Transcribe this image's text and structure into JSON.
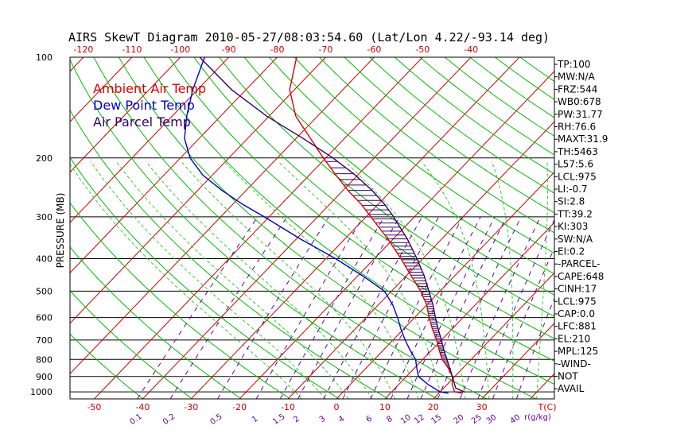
{
  "title": "AIRS SkewT Diagram 2010-05-27/08:03:54.60 (Lat/Lon 4.22/-93.14 deg)",
  "colors": {
    "ambient": "#dd0000",
    "dewpoint": "#0000cc",
    "parcel": "#330066",
    "isotherm": "#cc0000",
    "dry_adiabat": "#00bb00",
    "moist_adiabat": "#33cc33",
    "mixing_ratio": "#660099",
    "isobar": "#000000"
  },
  "legend": [
    {
      "label": "Ambient Air Temp",
      "color": "#dd0000"
    },
    {
      "label": "Dew Point Temp",
      "color": "#0000cc"
    },
    {
      "label": "Air Parcel Temp",
      "color": "#330066"
    }
  ],
  "indices": [
    "TP:100",
    "MW:N/A",
    "FRZ:544",
    "WB0:678",
    "PW:31.77",
    "RH:76.6",
    "MAXT:31.9",
    "TH:5463",
    "L57:5.6",
    "LCL:975",
    "LI:-0.7",
    "SI:2.8",
    "TT:39.2",
    "KI:303",
    "SW:N/A",
    "EI:0.2",
    "-PARCEL-",
    "CAPE:648",
    "CINH:17",
    "LCL:975",
    "CAP:0.0",
    "LFC:881",
    "EL:210",
    "MPL:125",
    "-WIND-",
    "NOT",
    "AVAIL"
  ],
  "chart_data": {
    "type": "line",
    "title": "AIRS SkewT Diagram 2010-05-27/08:03:54.60 (Lat/Lon 4.22/-93.14 deg)",
    "ylabel": "PRESSURE (MB)",
    "xlabel": "T(C)",
    "mixing_ratio_unit": "r(g/kg)",
    "y_scale": "log",
    "ylim": [
      1050,
      100
    ],
    "xlim": [
      -55,
      45
    ],
    "pressure_ticks": [
      100,
      200,
      300,
      400,
      500,
      600,
      700,
      800,
      900,
      1000
    ],
    "bottom_temp_ticks": [
      "-50",
      "-40",
      "-30",
      "-20",
      "-10",
      "0",
      "10",
      "20",
      "30"
    ],
    "top_temp_ticks": [
      "-120",
      "-110",
      "-100",
      "-90",
      "-80",
      "-70",
      "-60",
      "-50",
      "-40"
    ],
    "mixing_ratio_ticks": [
      "0.1",
      "0.2",
      "0.5",
      "1",
      "1.5",
      "2",
      "3",
      "4",
      "6",
      "8",
      "10",
      "12",
      "15",
      "20",
      "25",
      "30",
      "40"
    ],
    "grid": true,
    "series": [
      {
        "name": "Ambient Air Temp",
        "p": [
          1010,
          1000,
          950,
          900,
          850,
          800,
          750,
          700,
          650,
          600,
          550,
          500,
          450,
          400,
          350,
          300,
          275,
          250,
          225,
          200,
          175,
          150,
          125,
          100
        ],
        "t": [
          25,
          23,
          21,
          19.5,
          17,
          14,
          11.5,
          9,
          6,
          3,
          0,
          -4,
          -9,
          -14.5,
          -21,
          -29,
          -33.5,
          -39,
          -44.5,
          -50.5,
          -57,
          -64.5,
          -71,
          -76
        ]
      },
      {
        "name": "Dew Point Temp",
        "p": [
          1010,
          1000,
          950,
          900,
          850,
          800,
          750,
          700,
          650,
          600,
          550,
          500,
          450,
          400,
          350,
          300,
          275,
          250,
          225,
          200,
          175,
          150,
          125,
          100
        ],
        "t": [
          22,
          20,
          16,
          12.5,
          10.5,
          8.5,
          5.5,
          2.5,
          -0.5,
          -3.5,
          -7,
          -11.5,
          -19,
          -28,
          -39,
          -51,
          -58,
          -65,
          -72,
          -78,
          -83,
          -87,
          -91,
          -95
        ]
      },
      {
        "name": "Air Parcel Temp",
        "p": [
          1000,
          975,
          950,
          900,
          850,
          800,
          750,
          700,
          650,
          600,
          550,
          500,
          450,
          400,
          350,
          300,
          275,
          250,
          225,
          200,
          175,
          150,
          125,
          100
        ],
        "t": [
          25,
          22.5,
          21.5,
          19.5,
          17.3,
          15,
          12.5,
          10,
          7.2,
          4.3,
          1.3,
          -2.3,
          -6.3,
          -11.2,
          -17,
          -24.3,
          -28.7,
          -34,
          -40.5,
          -48.5,
          -58.5,
          -70.5,
          -83,
          -96
        ]
      }
    ]
  }
}
